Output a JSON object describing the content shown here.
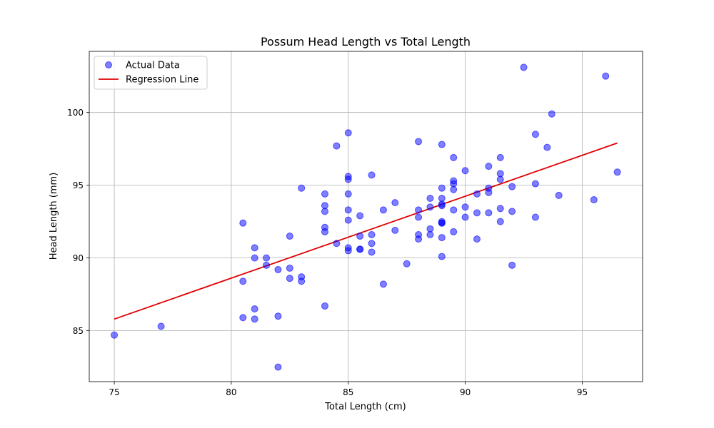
{
  "chart_data": {
    "type": "scatter",
    "title": "Possum Head Length vs Total Length",
    "xlabel": "Total Length (cm)",
    "ylabel": "Head Length (mm)",
    "xlim": [
      73.93,
      97.58
    ],
    "ylim": [
      81.5,
      104.2
    ],
    "xticks": [
      75,
      80,
      85,
      90,
      95
    ],
    "yticks": [
      85,
      90,
      95,
      100
    ],
    "grid": true,
    "legend_position": "top-left",
    "colors": {
      "scatter": "#0000ff",
      "line": "#e00000",
      "grid": "#b0b0b0"
    },
    "series": [
      {
        "name": "Actual Data",
        "kind": "scatter",
        "points": [
          [
            75,
            84.7
          ],
          [
            77,
            85.3
          ],
          [
            80.5,
            92.4
          ],
          [
            80.5,
            88.4
          ],
          [
            80.5,
            85.9
          ],
          [
            81,
            90.7
          ],
          [
            81,
            90.0
          ],
          [
            81,
            86.5
          ],
          [
            81,
            85.8
          ],
          [
            81.5,
            90.0
          ],
          [
            81.5,
            89.5
          ],
          [
            82,
            89.2
          ],
          [
            82,
            86.0
          ],
          [
            82,
            82.5
          ],
          [
            82.5,
            91.5
          ],
          [
            82.5,
            89.3
          ],
          [
            82.5,
            88.6
          ],
          [
            83,
            94.8
          ],
          [
            83,
            88.7
          ],
          [
            83,
            88.4
          ],
          [
            84,
            94.4
          ],
          [
            84,
            93.6
          ],
          [
            84,
            93.2
          ],
          [
            84,
            92.1
          ],
          [
            84,
            91.8
          ],
          [
            84,
            86.7
          ],
          [
            84.5,
            97.7
          ],
          [
            84.5,
            91.0
          ],
          [
            85,
            98.6
          ],
          [
            85,
            95.6
          ],
          [
            85,
            95.4
          ],
          [
            85,
            94.4
          ],
          [
            85,
            93.3
          ],
          [
            85,
            92.6
          ],
          [
            85,
            90.7
          ],
          [
            85,
            90.5
          ],
          [
            85.5,
            92.9
          ],
          [
            85.5,
            91.5
          ],
          [
            85.5,
            90.6
          ],
          [
            85.5,
            90.6
          ],
          [
            86,
            95.7
          ],
          [
            86,
            91.6
          ],
          [
            86,
            91.0
          ],
          [
            86,
            90.4
          ],
          [
            86.5,
            93.3
          ],
          [
            86.5,
            88.2
          ],
          [
            87,
            93.8
          ],
          [
            87,
            91.9
          ],
          [
            87.5,
            89.6
          ],
          [
            88,
            98.0
          ],
          [
            88,
            93.3
          ],
          [
            88,
            92.8
          ],
          [
            88,
            91.6
          ],
          [
            88,
            91.3
          ],
          [
            88.5,
            94.1
          ],
          [
            88.5,
            93.5
          ],
          [
            88.5,
            92.0
          ],
          [
            88.5,
            91.6
          ],
          [
            89,
            97.8
          ],
          [
            89,
            94.8
          ],
          [
            89,
            94.1
          ],
          [
            89,
            93.7
          ],
          [
            89,
            93.6
          ],
          [
            89,
            92.5
          ],
          [
            89,
            92.4
          ],
          [
            89,
            92.4
          ],
          [
            89,
            91.4
          ],
          [
            89,
            90.1
          ],
          [
            89.5,
            96.9
          ],
          [
            89.5,
            95.3
          ],
          [
            89.5,
            95.1
          ],
          [
            89.5,
            94.7
          ],
          [
            89.5,
            93.3
          ],
          [
            89.5,
            91.8
          ],
          [
            90,
            96.0
          ],
          [
            90,
            93.5
          ],
          [
            90,
            92.8
          ],
          [
            90.5,
            94.4
          ],
          [
            90.5,
            93.1
          ],
          [
            90.5,
            91.3
          ],
          [
            91,
            96.3
          ],
          [
            91,
            94.8
          ],
          [
            91,
            94.5
          ],
          [
            91,
            93.1
          ],
          [
            91.5,
            96.9
          ],
          [
            91.5,
            95.8
          ],
          [
            91.5,
            95.4
          ],
          [
            91.5,
            93.4
          ],
          [
            91.5,
            92.5
          ],
          [
            92,
            94.9
          ],
          [
            92,
            93.2
          ],
          [
            92,
            89.5
          ],
          [
            92.5,
            103.1
          ],
          [
            93,
            98.5
          ],
          [
            93,
            95.1
          ],
          [
            93,
            92.8
          ],
          [
            93.5,
            97.6
          ],
          [
            93.7,
            99.9
          ],
          [
            94,
            94.3
          ],
          [
            95.5,
            94.0
          ],
          [
            96,
            102.5
          ],
          [
            96.5,
            95.9
          ]
        ]
      },
      {
        "name": "Regression Line",
        "kind": "line",
        "points": [
          [
            75,
            85.8
          ],
          [
            96.5,
            97.9
          ]
        ]
      }
    ]
  }
}
